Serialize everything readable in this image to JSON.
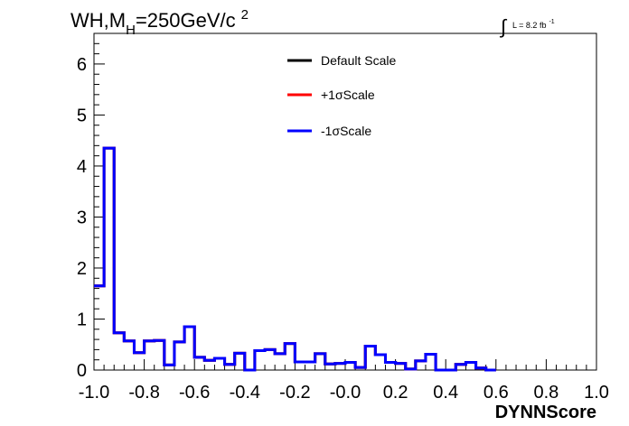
{
  "chart_data": {
    "type": "line",
    "title_parts": {
      "prefix": "WH,M",
      "subscript": "H",
      "middle": "=250GeV/c",
      "superscript": "2"
    },
    "luminosity": {
      "integral": "∫",
      "text": "L = 8.2 fb",
      "superscript": "-1"
    },
    "xlabel": "DYNNScore",
    "ylabel": "",
    "xlim": [
      -1.0,
      1.0
    ],
    "ylim": [
      0,
      6.6
    ],
    "x_tick_labels": [
      "-1.0",
      "-0.8",
      "-0.6",
      "-0.4",
      "-0.2",
      "-0.0",
      "0.2",
      "0.4",
      "0.6",
      "0.8",
      "1.0"
    ],
    "y_tick_labels": [
      "0",
      "1",
      "2",
      "3",
      "4",
      "5",
      "6"
    ],
    "legend_position": "top-center",
    "bin_edges_start": -1.0,
    "bin_width": 0.04,
    "series": [
      {
        "name": "Default Scale",
        "color": "#000000",
        "values": [
          1.65,
          4.35,
          0.73,
          0.57,
          0.34,
          0.57,
          0.58,
          0.1,
          0.55,
          0.85,
          0.25,
          0.19,
          0.23,
          0.11,
          0.33,
          0.0,
          0.38,
          0.4,
          0.32,
          0.52,
          0.16,
          0.16,
          0.32,
          0.12,
          0.13,
          0.15,
          0.05,
          0.47,
          0.3,
          0.15,
          0.13,
          0.02,
          0.18,
          0.31,
          0.0,
          0.0,
          0.11,
          0.15,
          0.04,
          0.0
        ]
      },
      {
        "name": "+1σScale",
        "color": "#ff0000",
        "values": [
          1.65,
          4.35,
          0.73,
          0.57,
          0.34,
          0.57,
          0.58,
          0.1,
          0.55,
          0.85,
          0.25,
          0.19,
          0.23,
          0.11,
          0.33,
          0.0,
          0.38,
          0.4,
          0.32,
          0.52,
          0.16,
          0.16,
          0.32,
          0.12,
          0.13,
          0.15,
          0.05,
          0.47,
          0.3,
          0.15,
          0.13,
          0.02,
          0.18,
          0.31,
          0.0,
          0.0,
          0.11,
          0.15,
          0.04,
          0.0
        ]
      },
      {
        "name": "-1σScale",
        "color": "#0000ff",
        "values": [
          1.65,
          4.35,
          0.73,
          0.57,
          0.34,
          0.57,
          0.58,
          0.1,
          0.55,
          0.85,
          0.25,
          0.19,
          0.23,
          0.11,
          0.33,
          0.0,
          0.38,
          0.4,
          0.32,
          0.52,
          0.16,
          0.16,
          0.32,
          0.12,
          0.13,
          0.15,
          0.05,
          0.47,
          0.3,
          0.15,
          0.13,
          0.02,
          0.18,
          0.31,
          0.0,
          0.0,
          0.11,
          0.15,
          0.04,
          0.0
        ]
      }
    ]
  }
}
